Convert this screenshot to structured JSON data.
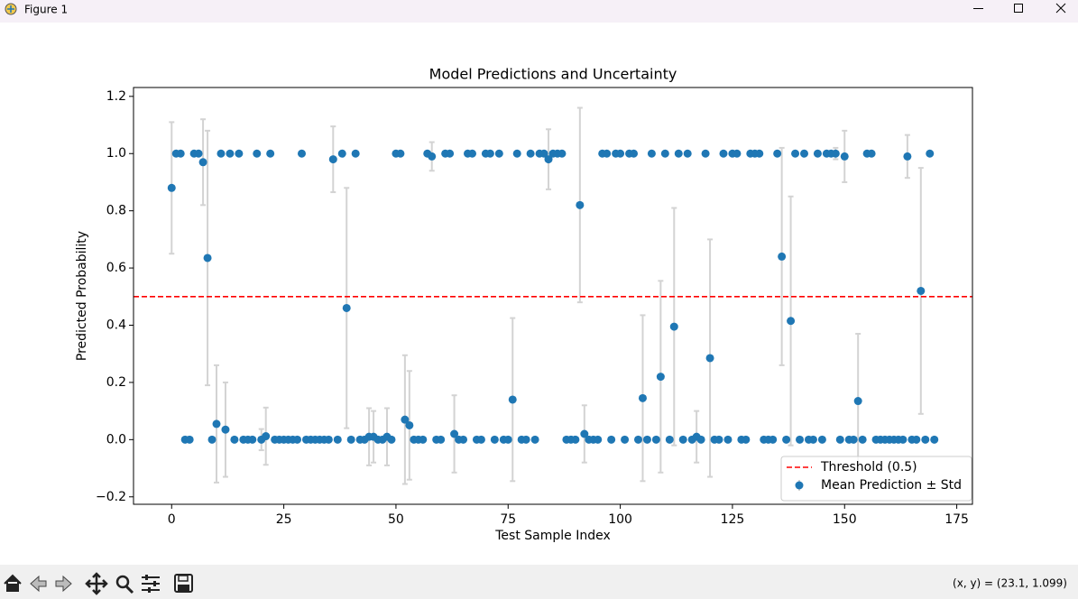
{
  "window": {
    "title": "Figure 1"
  },
  "toolbar": {
    "status": "(x, y) = (23.1, 1.099)"
  },
  "chart_data": {
    "type": "errorbar",
    "title": "Model Predictions and Uncertainty",
    "xlabel": "Test Sample Index",
    "ylabel": "Predicted Probability",
    "xlim": [
      -8.5,
      178.5
    ],
    "ylim": [
      -0.226,
      1.231
    ],
    "xticks": [
      0,
      25,
      50,
      75,
      100,
      125,
      150,
      175
    ],
    "yticks": [
      {
        "value": -0.2,
        "label": "−0.2"
      },
      {
        "value": 0,
        "label": "0.0"
      },
      0.2,
      0.4,
      0.6,
      0.8,
      {
        "value": 1,
        "label": "1.0"
      },
      1.2
    ],
    "legend": "lower right",
    "hline": {
      "value": 0.5,
      "label": "Threshold (0.5)",
      "color": "#ff0000"
    },
    "x": [
      0,
      1,
      2,
      3,
      4,
      5,
      6,
      7,
      8,
      9,
      10,
      11,
      12,
      13,
      14,
      15,
      16,
      17,
      18,
      19,
      20,
      21,
      22,
      23,
      24,
      25,
      26,
      27,
      28,
      29,
      30,
      31,
      32,
      33,
      34,
      35,
      36,
      37,
      38,
      39,
      40,
      41,
      42,
      43,
      44,
      45,
      46,
      47,
      48,
      49,
      50,
      51,
      52,
      53,
      54,
      55,
      56,
      57,
      58,
      59,
      60,
      61,
      62,
      63,
      64,
      65,
      66,
      67,
      68,
      69,
      70,
      71,
      72,
      73,
      74,
      75,
      76,
      77,
      78,
      79,
      80,
      81,
      82,
      83,
      84,
      85,
      86,
      87,
      88,
      89,
      90,
      91,
      92,
      93,
      94,
      95,
      96,
      97,
      98,
      99,
      100,
      101,
      102,
      103,
      104,
      105,
      106,
      107,
      108,
      109,
      110,
      111,
      112,
      113,
      114,
      115,
      116,
      117,
      118,
      119,
      120,
      121,
      122,
      123,
      124,
      125,
      126,
      127,
      128,
      129,
      130,
      131,
      132,
      133,
      134,
      135,
      136,
      137,
      138,
      139,
      140,
      141,
      142,
      143,
      144,
      145,
      146,
      147,
      148,
      149,
      150,
      151,
      152,
      153,
      154,
      155,
      156,
      157,
      158,
      159,
      160,
      161,
      162,
      163,
      164,
      165,
      166,
      167,
      168,
      169,
      170
    ],
    "series": [
      {
        "name": "Mean Prediction ± Std",
        "color": "#1f77b4",
        "error_color": "#d3d3d3",
        "values": [
          0.88,
          1,
          1,
          0,
          0,
          1,
          1,
          0.97,
          0.635,
          0,
          0.055,
          1,
          0.035,
          1,
          0,
          1,
          0,
          0,
          0,
          1,
          0,
          0.012,
          1,
          0,
          0,
          0,
          0,
          0,
          0,
          1,
          0,
          0,
          0,
          0,
          0,
          0,
          0.98,
          0,
          1,
          0.46,
          0,
          1,
          0,
          0,
          0.01,
          0.01,
          0,
          0,
          0.01,
          0,
          1,
          1,
          0.07,
          0.05,
          0,
          0,
          0,
          1,
          0.99,
          0,
          0,
          1,
          1,
          0.02,
          0,
          0,
          1,
          1,
          0,
          0,
          1,
          1,
          0,
          1,
          0,
          0,
          0.14,
          1,
          0,
          0,
          1,
          0,
          1,
          1,
          0.98,
          1,
          1,
          1,
          0,
          0,
          0,
          0.82,
          0.02,
          0,
          0,
          0,
          1,
          1,
          0,
          1,
          1,
          0,
          1,
          1,
          0,
          0.145,
          0,
          1,
          0,
          0.22,
          1,
          0,
          0.395,
          1,
          0,
          1,
          0,
          0.01,
          0,
          1,
          0.285,
          0,
          0,
          1,
          0,
          1,
          1,
          0,
          0,
          1,
          1,
          1,
          0,
          0,
          0,
          1,
          0.64,
          0,
          0.415,
          1,
          0,
          1,
          0,
          0,
          1,
          0,
          1,
          1,
          1,
          0,
          0.99,
          0,
          0,
          0.135,
          0,
          1,
          1,
          0,
          0,
          0,
          0,
          0,
          0,
          0,
          0.99,
          0,
          0,
          0.52,
          0,
          1,
          0
        ],
        "errors": [
          0.23,
          0,
          0,
          0,
          0,
          0,
          0,
          0.15,
          0.445,
          0,
          0.205,
          0,
          0.165,
          0,
          0,
          0,
          0,
          0,
          0,
          0,
          0.037,
          0.1,
          0,
          0,
          0,
          0,
          0,
          0,
          0,
          0,
          0,
          0,
          0,
          0,
          0,
          0,
          0.115,
          0,
          0,
          0.42,
          0,
          0,
          0,
          0,
          0.1,
          0.09,
          0,
          0,
          0.1,
          0,
          0,
          0,
          0.225,
          0.19,
          0,
          0,
          0,
          0,
          0.05,
          0,
          0,
          0,
          0,
          0.135,
          0,
          0,
          0,
          0,
          0,
          0,
          0,
          0,
          0,
          0,
          0,
          0,
          0.285,
          0,
          0,
          0,
          0,
          0,
          0,
          0,
          0.105,
          0,
          0,
          0,
          0,
          0,
          0,
          0.34,
          0.1,
          0,
          0,
          0,
          0,
          0,
          0,
          0,
          0,
          0,
          0,
          0,
          0,
          0.29,
          0,
          0,
          0,
          0.335,
          0,
          0,
          0.415,
          0,
          0,
          0,
          0,
          0.09,
          0,
          0,
          0.415,
          0,
          0,
          0,
          0,
          0,
          0,
          0,
          0,
          0,
          0,
          0,
          0,
          0,
          0,
          0,
          0.38,
          0,
          0.435,
          0,
          0,
          0,
          0,
          0,
          0,
          0,
          0,
          0,
          0.02,
          0,
          0.09,
          0,
          0,
          0.235,
          0,
          0,
          0,
          0,
          0,
          0,
          0,
          0,
          0,
          0,
          0.075,
          0,
          0,
          0.43,
          0,
          0,
          0
        ]
      }
    ]
  }
}
